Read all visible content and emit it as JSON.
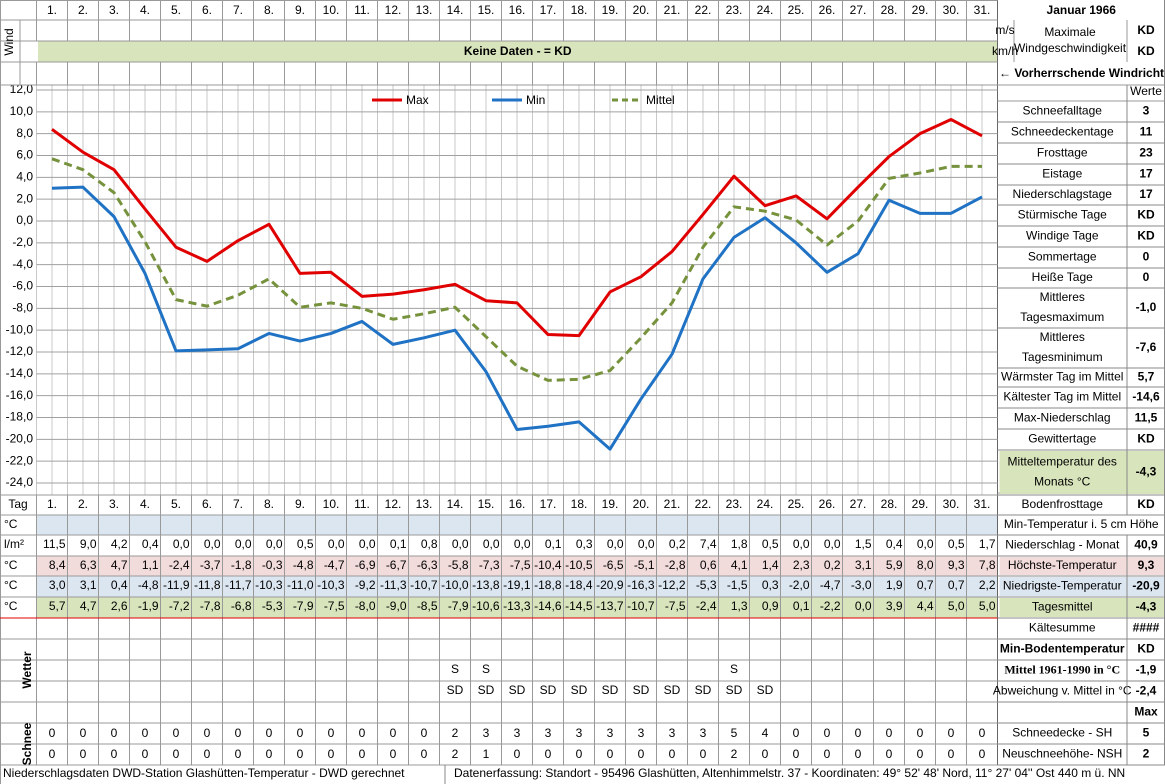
{
  "header": {
    "month": "Januar 1966",
    "wind_label": "Wind",
    "wind_units": [
      "m/s",
      "km/h"
    ],
    "wind_max_label": [
      "Maximale",
      "Windgeschwindigkeit"
    ],
    "wind_max_values": [
      "KD",
      "KD"
    ],
    "no_data": "Keine Daten -  = KD",
    "wind_direction": "← Vorherrschende Windrichtung"
  },
  "chart_data": {
    "type": "line",
    "categories": [
      "1.",
      "2.",
      "3.",
      "4.",
      "5.",
      "6.",
      "7.",
      "8.",
      "9.",
      "10.",
      "11.",
      "12.",
      "13.",
      "14.",
      "15.",
      "16.",
      "17.",
      "18.",
      "19.",
      "20.",
      "21.",
      "22.",
      "23.",
      "24.",
      "25.",
      "26.",
      "27.",
      "28.",
      "29.",
      "30.",
      "31."
    ],
    "series": [
      {
        "name": "Max",
        "color": "#e00000",
        "dash": false,
        "values": [
          8.4,
          6.3,
          4.7,
          1.1,
          -2.4,
          -3.7,
          -1.8,
          -0.3,
          -4.8,
          -4.7,
          -6.9,
          -6.7,
          -6.3,
          -5.8,
          -7.3,
          -7.5,
          -10.4,
          -10.5,
          -6.5,
          -5.1,
          -2.8,
          0.6,
          4.1,
          1.4,
          2.3,
          0.2,
          3.1,
          5.9,
          8.0,
          9.3,
          7.8
        ],
        "value_labels": [
          "8,4",
          "6,3",
          "4,7",
          "1,1",
          "-2,4",
          "-3,7",
          "-1,8",
          "-0,3",
          "-4,8",
          "-4,7",
          "-6,9",
          "-6,7",
          "-6,3",
          "-5,8",
          "-7,3",
          "-7,5",
          "-10,4",
          "-10,5",
          "-6,5",
          "-5,1",
          "-2,8",
          "0,6",
          "4,1",
          "1,4",
          "2,3",
          "0,2",
          "3,1",
          "5,9",
          "8,0",
          "9,3",
          "7,8"
        ]
      },
      {
        "name": "Min",
        "color": "#1f72c4",
        "dash": false,
        "values": [
          3.0,
          3.1,
          0.4,
          -4.8,
          -11.9,
          -11.8,
          -11.7,
          -10.3,
          -11.0,
          -10.3,
          -9.2,
          -11.3,
          -10.7,
          -10.0,
          -13.8,
          -19.1,
          -18.8,
          -18.4,
          -20.9,
          -16.3,
          -12.2,
          -5.3,
          -1.5,
          0.3,
          -2.0,
          -4.7,
          -3.0,
          1.9,
          0.7,
          0.7,
          2.2
        ],
        "value_labels": [
          "3,0",
          "3,1",
          "0,4",
          "-4,8",
          "-11,9",
          "-11,8",
          "-11,7",
          "-10,3",
          "-11,0",
          "-10,3",
          "-9,2",
          "-11,3",
          "-10,7",
          "-10,0",
          "-13,8",
          "-19,1",
          "-18,8",
          "-18,4",
          "-20,9",
          "-16,3",
          "-12,2",
          "-5,3",
          "-1,5",
          "0,3",
          "-2,0",
          "-4,7",
          "-3,0",
          "1,9",
          "0,7",
          "0,7",
          "2,2"
        ]
      },
      {
        "name": "Mittel",
        "color": "#76923c",
        "dash": true,
        "values": [
          5.7,
          4.7,
          2.6,
          -1.9,
          -7.2,
          -7.8,
          -6.8,
          -5.3,
          -7.9,
          -7.5,
          -8.0,
          -9.0,
          -8.5,
          -7.9,
          -10.6,
          -13.3,
          -14.6,
          -14.5,
          -13.7,
          -10.7,
          -7.5,
          -2.4,
          1.3,
          0.9,
          0.1,
          -2.2,
          0.0,
          3.9,
          4.4,
          5.0,
          5.0
        ],
        "value_labels": [
          "5,7",
          "4,7",
          "2,6",
          "-1,9",
          "-7,2",
          "-7,8",
          "-6,8",
          "-5,3",
          "-7,9",
          "-7,5",
          "-8,0",
          "-9,0",
          "-8,5",
          "-7,9",
          "-10,6",
          "-13,3",
          "-14,6",
          "-14,5",
          "-13,7",
          "-10,7",
          "-7,5",
          "-2,4",
          "1,3",
          "0,9",
          "0,1",
          "-2,2",
          "0,0",
          "3,9",
          "4,4",
          "5,0",
          "5,0"
        ]
      }
    ],
    "ylim": [
      -24,
      12
    ],
    "yticks": [
      {
        "value": 12,
        "label": "12,0"
      },
      {
        "value": 10,
        "label": "10,0"
      },
      {
        "value": 8,
        "label": "8,0"
      },
      {
        "value": 6,
        "label": "6,0"
      },
      {
        "value": 4,
        "label": "4,0"
      },
      {
        "value": 2,
        "label": "2,0"
      },
      {
        "value": 0,
        "label": "0,0"
      },
      {
        "value": -2,
        "label": "-2,0"
      },
      {
        "value": -4,
        "label": "-4,0"
      },
      {
        "value": -6,
        "label": "-6,0"
      },
      {
        "value": -8,
        "label": "-8,0"
      },
      {
        "value": -10,
        "label": "-10,0"
      },
      {
        "value": -12,
        "label": "-12,0"
      },
      {
        "value": -14,
        "label": "-14,0"
      },
      {
        "value": -16,
        "label": "-16,0"
      },
      {
        "value": -18,
        "label": "-18,0"
      },
      {
        "value": -20,
        "label": "-20,0"
      },
      {
        "value": -22,
        "label": "-22,0"
      },
      {
        "value": -24,
        "label": "-24,0"
      }
    ],
    "grid": true,
    "legend": "top"
  },
  "table": {
    "day_label": "Tag",
    "units": [
      "°C",
      "l/m²",
      "°C",
      "°C",
      "°C"
    ],
    "precipitation": [
      "11,5",
      "9,0",
      "4,2",
      "0,4",
      "0,0",
      "0,0",
      "0,0",
      "0,0",
      "0,5",
      "0,0",
      "0,0",
      "0,1",
      "0,8",
      "0,0",
      "0,0",
      "0,0",
      "0,1",
      "0,3",
      "0,0",
      "0,0",
      "0,2",
      "7,4",
      "1,8",
      "0,5",
      "0,0",
      "0,0",
      "1,5",
      "0,4",
      "0,0",
      "0,5",
      "1,7"
    ]
  },
  "wetter": {
    "label": "Wetter",
    "rows": [
      [
        null,
        null,
        null,
        null,
        null,
        null,
        null,
        null,
        null,
        null,
        null,
        null,
        null,
        "S",
        "S",
        null,
        null,
        null,
        null,
        null,
        null,
        null,
        "S",
        null,
        null,
        null,
        null,
        null,
        null,
        null,
        null
      ],
      [
        null,
        null,
        null,
        null,
        null,
        null,
        null,
        null,
        null,
        null,
        null,
        null,
        null,
        "SD",
        "SD",
        "SD",
        "SD",
        "SD",
        "SD",
        "SD",
        "SD",
        "SD",
        "SD",
        "SD",
        null,
        null,
        null,
        null,
        null,
        null,
        null
      ]
    ]
  },
  "schnee": {
    "label": "Schnee",
    "sh": [
      0,
      0,
      0,
      0,
      0,
      0,
      0,
      0,
      0,
      0,
      0,
      0,
      0,
      2,
      3,
      3,
      3,
      3,
      3,
      3,
      3,
      3,
      5,
      4,
      0,
      0,
      0,
      0,
      0,
      0,
      0
    ],
    "nsh": [
      0,
      0,
      0,
      0,
      0,
      0,
      0,
      0,
      0,
      0,
      0,
      0,
      0,
      2,
      1,
      0,
      0,
      0,
      0,
      0,
      0,
      0,
      2,
      0,
      0,
      0,
      0,
      0,
      0,
      0,
      0
    ]
  },
  "summary": {
    "header": "Werte",
    "rows": [
      {
        "label": "Schneefalltage",
        "value": 3
      },
      {
        "label": "Schneedeckentage",
        "value": 11
      },
      {
        "label": "Frosttage",
        "value": 23
      },
      {
        "label": "Eistage",
        "value": 17
      },
      {
        "label": "Niederschlagstage",
        "value": 17
      },
      {
        "label": "Stürmische Tage",
        "value": "KD"
      },
      {
        "label": "Windige Tage",
        "value": "KD"
      },
      {
        "label": "Sommertage",
        "value": 0
      },
      {
        "label": "Heiße Tage",
        "value": 0
      },
      {
        "label": [
          "Mittleres",
          "Tagesmaximum"
        ],
        "value": "-1,0"
      },
      {
        "label": [
          "Mittleres",
          "Tagesminimum"
        ],
        "value": "-7,6"
      },
      {
        "label": "Wärmster Tag im Mittel",
        "value": "5,7"
      },
      {
        "label": "Kältester Tag im Mittel",
        "value": "-14,6"
      },
      {
        "label": "Max-Niederschlag",
        "value": "11,5"
      },
      {
        "label": "Gewittertage",
        "value": "KD"
      },
      {
        "label": [
          "Mitteltemperatur des",
          "Monats °C"
        ],
        "value": "-4,3"
      },
      {
        "label": "Bodenfrosttage",
        "value": "KD"
      },
      {
        "label": "Min-Temperatur i. 5 cm Höhe"
      },
      {
        "label": "Niederschlag - Monat",
        "value": "40,9"
      },
      {
        "label": "Höchste-Temperatur",
        "value": "9,3"
      },
      {
        "label": "Niedrigste-Temperatur",
        "value": "-20,9"
      },
      {
        "label": "Tagesmittel",
        "value": "-4,3"
      },
      {
        "label": "Kältesumme",
        "value": "####"
      },
      {
        "label": "Min-Bodentemperatur",
        "value": "KD"
      },
      {
        "label": "Mittel 1961-1990 in °C",
        "value": "-1,9"
      },
      {
        "label": "Abweichung v. Mittel in °C",
        "value": "-2,4"
      },
      {
        "value": "Max"
      },
      {
        "label": "Schneedecke -  SH",
        "value": 5
      },
      {
        "label": "Neuschneehöhe- NSH",
        "value": 2
      }
    ]
  },
  "footer": {
    "left": "Niederschlagsdaten DWD-Station Glashütten-Temperatur -  DWD gerechnet",
    "right": "Datenerfassung: Standort -  95496  Glashütten, Altenhimmelstr. 37 - Koordinaten: 49° 52' 48' Nord,   11° 27' 04'' Ost   440 m ü. NN"
  }
}
